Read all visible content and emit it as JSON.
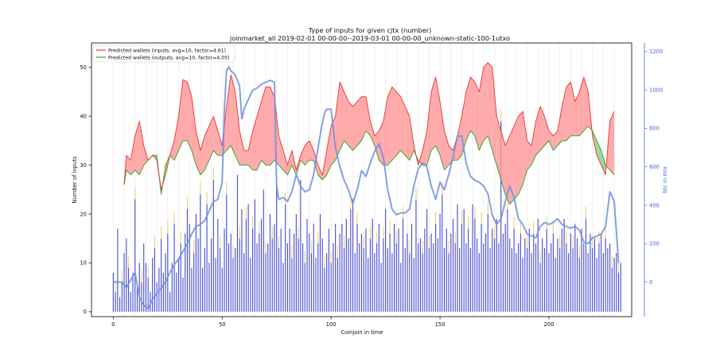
{
  "chart_data": {
    "type": "line",
    "title": "Type of inputs for given cjtx (number)",
    "subtitle": "joinmarket_all 2019-02-01 00-00-00--2019-03-01 00-00-00_unknown-static-100-1utxo",
    "xlabel": "Coinjoin in time",
    "ylabel": "Number of inputs",
    "y2label": "btc in mix",
    "xlim": [
      -10,
      238
    ],
    "ylim": [
      -1,
      55
    ],
    "y2lim": [
      -180,
      1245
    ],
    "xticks": [
      0,
      50,
      100,
      150,
      200
    ],
    "yticks": [
      0,
      10,
      20,
      30,
      40,
      50
    ],
    "y2ticks": [
      0,
      200,
      400,
      600,
      800,
      1000,
      1200
    ],
    "legend_position": "top-left",
    "grid": "vertical-lines",
    "series": [
      {
        "name": "Predicted wallets (inputs, avg=10, factor=4.61)",
        "color": "#e8322e",
        "x": [
          5,
          6,
          8,
          10,
          12,
          14,
          16,
          18,
          20,
          22,
          24,
          26,
          28,
          30,
          32,
          34,
          36,
          38,
          40,
          42,
          44,
          46,
          48,
          50,
          52,
          54,
          56,
          58,
          60,
          62,
          64,
          66,
          68,
          70,
          72,
          74,
          76,
          78,
          80,
          82,
          84,
          86,
          88,
          90,
          92,
          94,
          96,
          98,
          100,
          102,
          104,
          106,
          108,
          110,
          112,
          114,
          116,
          118,
          120,
          122,
          124,
          126,
          128,
          130,
          132,
          134,
          136,
          138,
          140,
          142,
          144,
          146,
          148,
          150,
          152,
          154,
          156,
          158,
          160,
          162,
          164,
          166,
          168,
          170,
          172,
          174,
          176,
          178,
          180,
          182,
          184,
          186,
          188,
          190,
          192,
          194,
          196,
          198,
          200,
          202,
          204,
          206,
          208,
          210,
          212,
          214,
          216,
          218,
          220,
          222,
          224,
          226,
          228,
          230
        ],
        "values": [
          26,
          32,
          31,
          36,
          39,
          34,
          31,
          32,
          31,
          25,
          28,
          32,
          35,
          40,
          47.5,
          47,
          44,
          37,
          33,
          36,
          38,
          40,
          37,
          34,
          42,
          48.5,
          45,
          37,
          33,
          33,
          37,
          40,
          43,
          46,
          46,
          44,
          36,
          33,
          30,
          33,
          29,
          32,
          34,
          35,
          33,
          30,
          28,
          33,
          38,
          40,
          47,
          45,
          43,
          42,
          43,
          44,
          44,
          39,
          36,
          37,
          39,
          44,
          46,
          45,
          44,
          42,
          40,
          34,
          30,
          33,
          37,
          45,
          48,
          43,
          37,
          34,
          33,
          36,
          40,
          45,
          48,
          47,
          45,
          50,
          51,
          50,
          40,
          37,
          34,
          36,
          38,
          40,
          41,
          35,
          34,
          39,
          42,
          40,
          37,
          36,
          37,
          42,
          46,
          47,
          43,
          45,
          48,
          45,
          36,
          32,
          30,
          28,
          39,
          41
        ]
      },
      {
        "name": "Predicted wallets (outputs, avg=10, factor=4.05)",
        "color": "#2e9e2e",
        "x": [
          5,
          6,
          8,
          10,
          12,
          14,
          16,
          18,
          20,
          22,
          24,
          26,
          28,
          30,
          32,
          34,
          36,
          38,
          40,
          42,
          44,
          46,
          48,
          50,
          52,
          54,
          56,
          58,
          60,
          62,
          64,
          66,
          68,
          70,
          72,
          74,
          76,
          78,
          80,
          82,
          84,
          86,
          88,
          90,
          92,
          94,
          96,
          98,
          100,
          102,
          104,
          106,
          108,
          110,
          112,
          114,
          116,
          118,
          120,
          122,
          124,
          126,
          128,
          130,
          132,
          134,
          136,
          138,
          140,
          142,
          144,
          146,
          148,
          150,
          152,
          154,
          156,
          158,
          160,
          162,
          164,
          166,
          168,
          170,
          172,
          174,
          176,
          178,
          180,
          182,
          184,
          186,
          188,
          190,
          192,
          194,
          196,
          198,
          200,
          202,
          204,
          206,
          208,
          210,
          212,
          214,
          216,
          218,
          220,
          222,
          224,
          226,
          228,
          230
        ],
        "values": [
          26,
          29,
          28,
          29,
          28,
          30,
          31,
          32,
          32,
          24,
          30,
          32,
          31,
          33,
          35,
          35,
          33,
          30,
          28,
          29,
          31,
          33,
          32,
          32,
          33,
          34,
          32,
          30,
          30,
          30,
          29,
          29,
          31,
          30,
          30,
          31,
          30,
          29,
          28,
          30,
          28,
          31,
          30,
          31,
          31,
          28,
          27,
          28,
          30,
          31,
          33,
          35,
          34,
          33,
          34,
          35,
          37,
          36,
          34,
          31,
          30,
          30,
          31,
          32,
          33,
          32,
          31,
          33,
          31,
          30,
          30,
          33,
          34,
          32,
          29,
          30,
          31,
          31,
          32,
          35,
          37,
          36,
          33,
          35,
          36,
          33,
          30,
          27,
          24,
          22,
          23,
          24,
          26,
          29,
          30,
          32,
          33,
          34,
          35,
          33,
          34,
          35,
          35,
          36,
          36,
          36,
          37,
          38,
          37,
          35,
          33,
          30,
          29,
          28
        ]
      },
      {
        "name": "btc in mix",
        "axis": "right",
        "color": "#6f8fe0",
        "x": [
          0,
          4,
          6,
          8,
          10,
          12,
          14,
          16,
          18,
          20,
          22,
          24,
          26,
          28,
          30,
          32,
          34,
          36,
          38,
          40,
          42,
          44,
          46,
          48,
          50,
          51,
          52,
          53,
          54,
          56,
          58,
          59,
          60,
          62,
          64,
          66,
          68,
          70,
          72,
          74,
          75,
          76,
          78,
          80,
          82,
          84,
          86,
          88,
          90,
          92,
          94,
          96,
          97,
          98,
          100,
          102,
          104,
          106,
          108,
          110,
          112,
          114,
          116,
          118,
          120,
          122,
          124,
          126,
          128,
          130,
          132,
          134,
          136,
          138,
          140,
          142,
          144,
          146,
          148,
          150,
          152,
          154,
          156,
          158,
          160,
          162,
          164,
          166,
          168,
          170,
          172,
          174,
          176,
          178,
          180,
          182,
          184,
          186,
          188,
          190,
          192,
          194,
          196,
          198,
          200,
          202,
          204,
          206,
          208,
          210,
          212,
          214,
          216,
          218,
          220,
          222,
          224,
          226,
          228,
          230,
          232
        ],
        "values": [
          0,
          0,
          -30,
          10,
          50,
          -80,
          -120,
          -140,
          -90,
          -60,
          -30,
          0,
          50,
          90,
          120,
          160,
          200,
          250,
          290,
          300,
          320,
          370,
          420,
          430,
          520,
          900,
          1100,
          1120,
          1100,
          1080,
          1020,
          850,
          900,
          950,
          1000,
          1010,
          1030,
          1040,
          1050,
          1040,
          500,
          430,
          440,
          420,
          470,
          560,
          500,
          470,
          480,
          560,
          700,
          830,
          880,
          900,
          900,
          700,
          600,
          530,
          480,
          410,
          480,
          580,
          550,
          620,
          680,
          720,
          650,
          480,
          380,
          350,
          360,
          360,
          380,
          500,
          590,
          620,
          600,
          500,
          430,
          520,
          480,
          560,
          650,
          760,
          760,
          620,
          550,
          530,
          520,
          500,
          460,
          350,
          300,
          330,
          420,
          500,
          440,
          330,
          300,
          250,
          240,
          230,
          290,
          310,
          300,
          310,
          330,
          300,
          290,
          280,
          290,
          270,
          210,
          200,
          230,
          240,
          250,
          290,
          470,
          420,
          100
        ]
      }
    ],
    "bars": {
      "name": "inputs per coinjoin",
      "colors": [
        "#2a33c9",
        "#f0c45a",
        "#d95030"
      ],
      "x_start": 0,
      "values": [
        8,
        4,
        17,
        3,
        6,
        12,
        15,
        9,
        4,
        8,
        23,
        5,
        10,
        6,
        14,
        10,
        7,
        4,
        11,
        13,
        6,
        9,
        15,
        8,
        12,
        16,
        4,
        10,
        18,
        8,
        11,
        14,
        7,
        16,
        21,
        18,
        9,
        12,
        20,
        15,
        24,
        9,
        13,
        22,
        10,
        15,
        27,
        11,
        19,
        13,
        9,
        17,
        24,
        14,
        16,
        11,
        13,
        28,
        15,
        21,
        12,
        19,
        22,
        11,
        17,
        23,
        14,
        16,
        19,
        25,
        12,
        14,
        20,
        15,
        18,
        26,
        13,
        17,
        10,
        22,
        14,
        17,
        11,
        16,
        20,
        15,
        27,
        14,
        10,
        19,
        16,
        12,
        18,
        11,
        14,
        20,
        15,
        9,
        12,
        17,
        10,
        14,
        18,
        11,
        16,
        18,
        13,
        19,
        15,
        21,
        23,
        12,
        18,
        14,
        16,
        13,
        17,
        11,
        15,
        19,
        12,
        14,
        18,
        10,
        15,
        21,
        13,
        16,
        12,
        18,
        14,
        17,
        10,
        19,
        13,
        16,
        12,
        18,
        11,
        23,
        14,
        15,
        12,
        17,
        21,
        13,
        16,
        14,
        18,
        15,
        20,
        24,
        13,
        17,
        12,
        16,
        19,
        14,
        22,
        13,
        18,
        21,
        14,
        17,
        13,
        22,
        19,
        15,
        12,
        18,
        14,
        16,
        20,
        13,
        17,
        15,
        19,
        14,
        39,
        16,
        18,
        21,
        15,
        13,
        17,
        12,
        14,
        16,
        11,
        15,
        13,
        17,
        12,
        16,
        14,
        19,
        10,
        15,
        13,
        17,
        12,
        14,
        16,
        11,
        15,
        13,
        17,
        19,
        14,
        12,
        16,
        13,
        18,
        15,
        11,
        17,
        14,
        19,
        12,
        16,
        13,
        15,
        11,
        14,
        16,
        12,
        15,
        13,
        14,
        9,
        11,
        12,
        8,
        10
      ]
    }
  }
}
